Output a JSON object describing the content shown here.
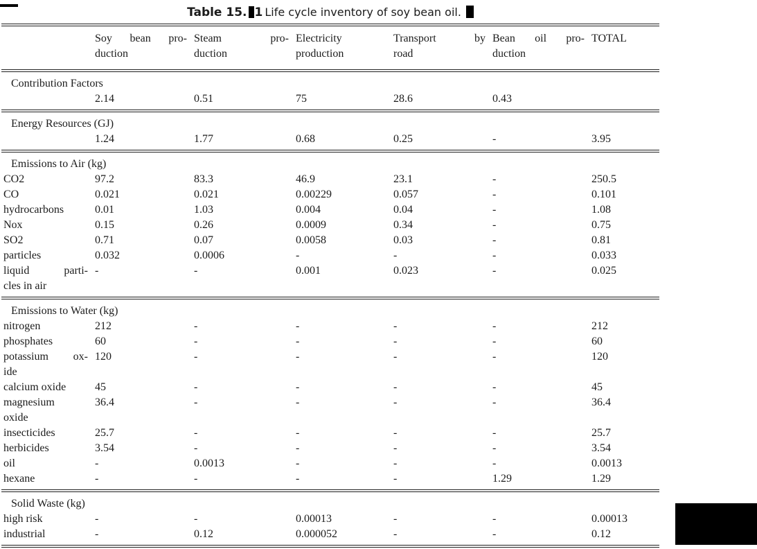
{
  "colors": {
    "background": "#ffffff",
    "text": "#1b1b1b",
    "rule": "#1d1d1d",
    "mark": "#000000"
  },
  "caption": {
    "label": "Table 15.",
    "number": "1",
    "text": "Life cycle inventory of soy bean oil."
  },
  "marks": {
    "top_left_artifact": "black-strip",
    "caption_mid_mark": "black-cursor-mark",
    "caption_end_mark": "black-cursor-mark",
    "bottom_right_box": "black-redaction-box"
  },
  "table": {
    "columns": [
      {
        "lines": [
          ""
        ]
      },
      {
        "lines": [
          "Soy bean pro-",
          "duction"
        ]
      },
      {
        "lines": [
          "Steam pro-",
          "duction"
        ]
      },
      {
        "lines": [
          "Electricity",
          "production"
        ]
      },
      {
        "lines": [
          "Transport by",
          "road"
        ]
      },
      {
        "lines": [
          "Bean oil pro-",
          "duction"
        ]
      },
      {
        "lines": [
          "TOTAL"
        ]
      }
    ],
    "sections": [
      {
        "header": "Contribution Factors",
        "rows": [
          {
            "label": "",
            "values": [
              "2.14",
              "0.51",
              "75",
              "28.6",
              "0.43",
              ""
            ]
          }
        ]
      },
      {
        "header": "Energy Resources (GJ)",
        "rows": [
          {
            "label": "",
            "values": [
              "1.24",
              "1.77",
              "0.68",
              "0.25",
              "-",
              "3.95"
            ]
          }
        ]
      },
      {
        "header": "Emissions to Air (kg)",
        "rows": [
          {
            "label": "CO2",
            "values": [
              "97.2",
              "83.3",
              "46.9",
              "23.1",
              "-",
              "250.5"
            ]
          },
          {
            "label": "CO",
            "values": [
              "0.021",
              "0.021",
              "0.00229",
              "0.057",
              "-",
              "0.101"
            ]
          },
          {
            "label": "hydrocarbons",
            "values": [
              "0.01",
              "1.03",
              "0.004",
              "0.04",
              "-",
              "1.08"
            ]
          },
          {
            "label": "Nox",
            "values": [
              "0.15",
              "0.26",
              "0.0009",
              "0.34",
              "-",
              "0.75"
            ]
          },
          {
            "label": "SO2",
            "values": [
              "0.71",
              "0.07",
              "0.0058",
              "0.03",
              "-",
              "0.81"
            ]
          },
          {
            "label": "particles",
            "values": [
              "0.032",
              "0.0006",
              "-",
              "-",
              "-",
              "0.033"
            ]
          },
          {
            "label": "liquid particles in air",
            "label_lines": [
              "liquid parti-",
              "cles in air"
            ],
            "values": [
              "-",
              "-",
              "0.001",
              "0.023",
              "-",
              "0.025"
            ]
          }
        ]
      },
      {
        "header": "Emissions to Water (kg)",
        "rows": [
          {
            "label": "nitrogen",
            "values": [
              "212",
              "-",
              "-",
              "-",
              "-",
              "212"
            ]
          },
          {
            "label": "phosphates",
            "values": [
              "60",
              "-",
              "-",
              "-",
              "-",
              "60"
            ]
          },
          {
            "label": "potassium oxide",
            "label_lines": [
              "potassium ox-",
              "ide"
            ],
            "values": [
              "120",
              "-",
              "-",
              "-",
              "-",
              "120"
            ]
          },
          {
            "label": "calcium oxide",
            "values": [
              "45",
              "-",
              "-",
              "-",
              "-",
              "45"
            ]
          },
          {
            "label": "magnesium oxide",
            "label_lines": [
              "magnesium",
              "oxide"
            ],
            "values": [
              "36.4",
              "-",
              "-",
              "-",
              "-",
              "36.4"
            ]
          },
          {
            "label": "insecticides",
            "values": [
              "25.7",
              "-",
              "-",
              "-",
              "-",
              "25.7"
            ]
          },
          {
            "label": "herbicides",
            "values": [
              "3.54",
              "-",
              "-",
              "-",
              "-",
              "3.54"
            ]
          },
          {
            "label": "oil",
            "values": [
              "-",
              "0.0013",
              "-",
              "-",
              "-",
              "0.0013"
            ]
          },
          {
            "label": "hexane",
            "values": [
              "-",
              "-",
              "-",
              "-",
              "1.29",
              "1.29"
            ]
          }
        ]
      },
      {
        "header": "Solid Waste (kg)",
        "rows": [
          {
            "label": "high risk",
            "values": [
              "-",
              "-",
              "0.00013",
              "-",
              "-",
              "0.00013"
            ]
          },
          {
            "label": "industrial",
            "values": [
              "-",
              "0.12",
              "0.000052",
              "-",
              "-",
              "0.12"
            ]
          }
        ]
      }
    ]
  }
}
